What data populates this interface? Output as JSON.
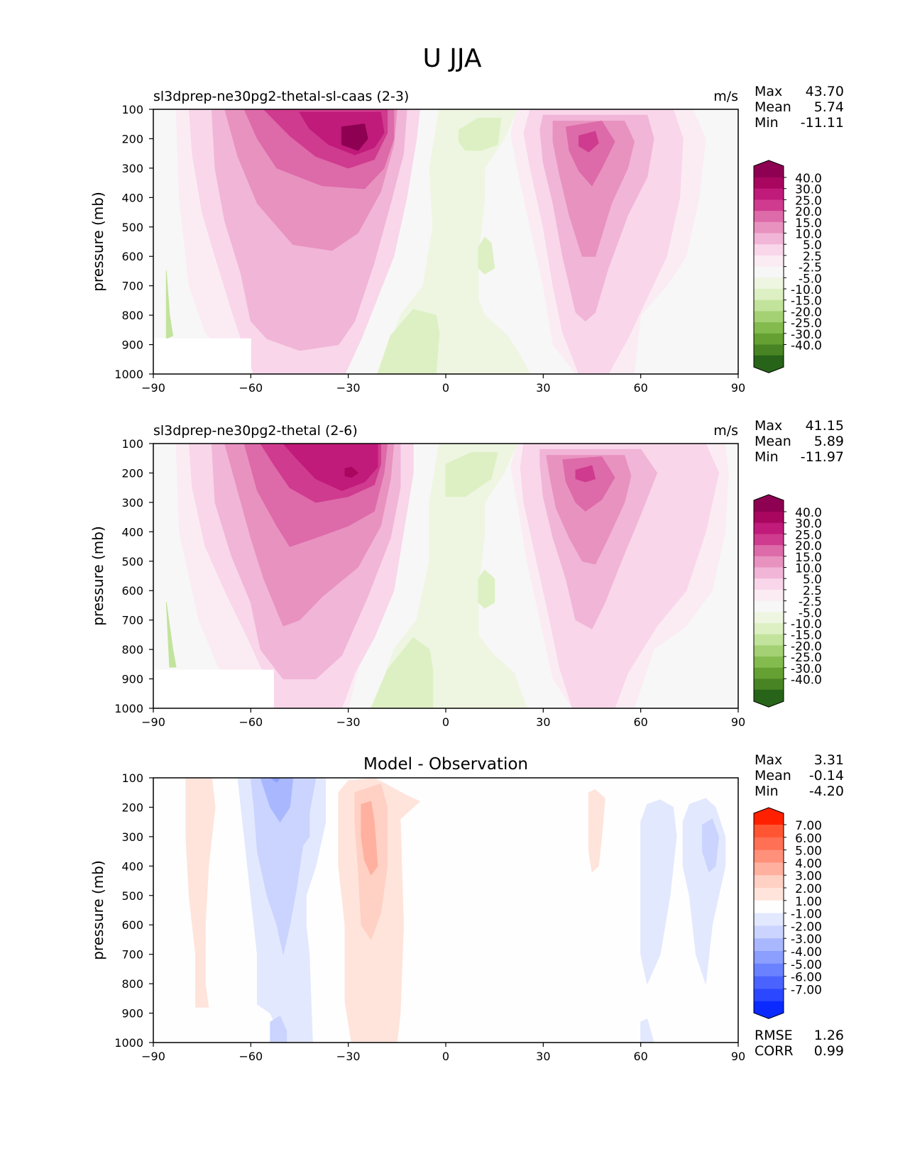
{
  "title": "U JJA",
  "y_axis_label": "pressure (mb)",
  "x_ticks": [
    "−90",
    "−60",
    "−30",
    "0",
    "30",
    "60",
    "90"
  ],
  "y_ticks": [
    "100",
    "200",
    "300",
    "400",
    "500",
    "600",
    "700",
    "800",
    "900",
    "1000"
  ],
  "stat_labels": {
    "max": "Max",
    "mean": "Mean",
    "min": "Min",
    "rmse": "RMSE",
    "corr": "CORR"
  },
  "panels": [
    {
      "title": "sl3dprep-ne30pg2-thetal-sl-caas (2-3)",
      "units": "m/s",
      "stats": {
        "max": "43.70",
        "mean": "5.74",
        "min": "-11.11"
      },
      "colorbar_labels": [
        "40.0",
        "30.0",
        "25.0",
        "20.0",
        "15.0",
        "10.0",
        "5.0",
        "2.5",
        "-2.5",
        "-5.0",
        "-10.0",
        "-15.0",
        "-20.0",
        "-25.0",
        "-30.0",
        "-40.0"
      ]
    },
    {
      "title": "sl3dprep-ne30pg2-thetal (2-6)",
      "units": "m/s",
      "stats": {
        "max": "41.15",
        "mean": "5.89",
        "min": "-11.97"
      },
      "colorbar_labels": [
        "40.0",
        "30.0",
        "25.0",
        "20.0",
        "15.0",
        "10.0",
        "5.0",
        "2.5",
        "-2.5",
        "-5.0",
        "-10.0",
        "-15.0",
        "-20.0",
        "-25.0",
        "-30.0",
        "-40.0"
      ]
    },
    {
      "title": "Model - Observation",
      "units": "",
      "stats": {
        "max": "3.31",
        "mean": "-0.14",
        "min": "-4.20",
        "rmse": "1.26",
        "corr": "0.99"
      },
      "colorbar_labels": [
        "7.00",
        "6.00",
        "5.00",
        "4.00",
        "3.00",
        "2.00",
        "1.00",
        "-1.00",
        "-2.00",
        "-3.00",
        "-4.00",
        "-5.00",
        "-6.00",
        "-7.00"
      ]
    }
  ],
  "colors": {
    "pink_green": [
      "#8e0152",
      "#a8065f",
      "#c01a7a",
      "#cf3b8e",
      "#dd6aa9",
      "#e892c0",
      "#f1b5d7",
      "#f9d6ea",
      "#fbecf4",
      "#f7f7f7",
      "#eef6e2",
      "#ddf0c3",
      "#c2e39b",
      "#a3d174",
      "#83bb4f",
      "#64a032",
      "#488424",
      "#276419"
    ],
    "red_blue": [
      "#ff2000",
      "#ff5533",
      "#ff7055",
      "#ff907a",
      "#ffb09e",
      "#ffd0c4",
      "#ffe4dc",
      "#fefefe",
      "#e2e8fe",
      "#cad4fe",
      "#a9b8fe",
      "#8c9efe",
      "#6a82ff",
      "#4a63ff",
      "#2b47ff",
      "#0a2aff"
    ]
  },
  "chart_data": [
    {
      "type": "contour",
      "title": "sl3dprep-ne30pg2-thetal-sl-caas (2-3)",
      "units": "m/s",
      "xlabel": "",
      "ylabel": "pressure (mb)",
      "xlim": [
        -90,
        90
      ],
      "ylim": [
        1000,
        100
      ],
      "y_inverted": true,
      "stats": {
        "max": 43.7,
        "mean": 5.74,
        "min": -11.11
      },
      "levels": [
        -40,
        -30,
        -25,
        -20,
        -15,
        -10,
        -5,
        -2.5,
        2.5,
        5,
        10,
        15,
        20,
        25,
        30,
        40
      ],
      "features": [
        {
          "kind": "max",
          "lat": -29,
          "p": 190,
          "value": 43.7
        },
        {
          "kind": "max",
          "lat": 44,
          "p": 200,
          "value": 22
        },
        {
          "kind": "min",
          "lat": 12,
          "p": 600,
          "value": -11.11
        }
      ]
    },
    {
      "type": "contour",
      "title": "sl3dprep-ne30pg2-thetal (2-6)",
      "units": "m/s",
      "xlabel": "",
      "ylabel": "pressure (mb)",
      "xlim": [
        -90,
        90
      ],
      "ylim": [
        1000,
        100
      ],
      "y_inverted": true,
      "stats": {
        "max": 41.15,
        "mean": 5.89,
        "min": -11.97
      },
      "levels": [
        -40,
        -30,
        -25,
        -20,
        -15,
        -10,
        -5,
        -2.5,
        2.5,
        5,
        10,
        15,
        20,
        25,
        30,
        40
      ],
      "features": [
        {
          "kind": "max",
          "lat": -30,
          "p": 190,
          "value": 41.15
        },
        {
          "kind": "max",
          "lat": 42,
          "p": 200,
          "value": 21
        },
        {
          "kind": "min",
          "lat": 12,
          "p": 600,
          "value": -11.97
        }
      ]
    },
    {
      "type": "contour",
      "title": "Model - Observation",
      "xlabel": "",
      "ylabel": "pressure (mb)",
      "xlim": [
        -90,
        90
      ],
      "ylim": [
        1000,
        100
      ],
      "y_inverted": true,
      "stats": {
        "max": 3.31,
        "mean": -0.14,
        "min": -4.2,
        "rmse": 1.26,
        "corr": 0.99
      },
      "levels": [
        -7,
        -6,
        -5,
        -4,
        -3,
        -2,
        -1,
        1,
        2,
        3,
        4,
        5,
        6,
        7
      ],
      "features": [
        {
          "kind": "max",
          "lat": -25,
          "p": 300,
          "value": 3.31
        },
        {
          "kind": "min",
          "lat": -52,
          "p": 150,
          "value": -4.2
        },
        {
          "kind": "min",
          "lat": 81,
          "p": 330,
          "value": -2.5
        }
      ]
    }
  ]
}
